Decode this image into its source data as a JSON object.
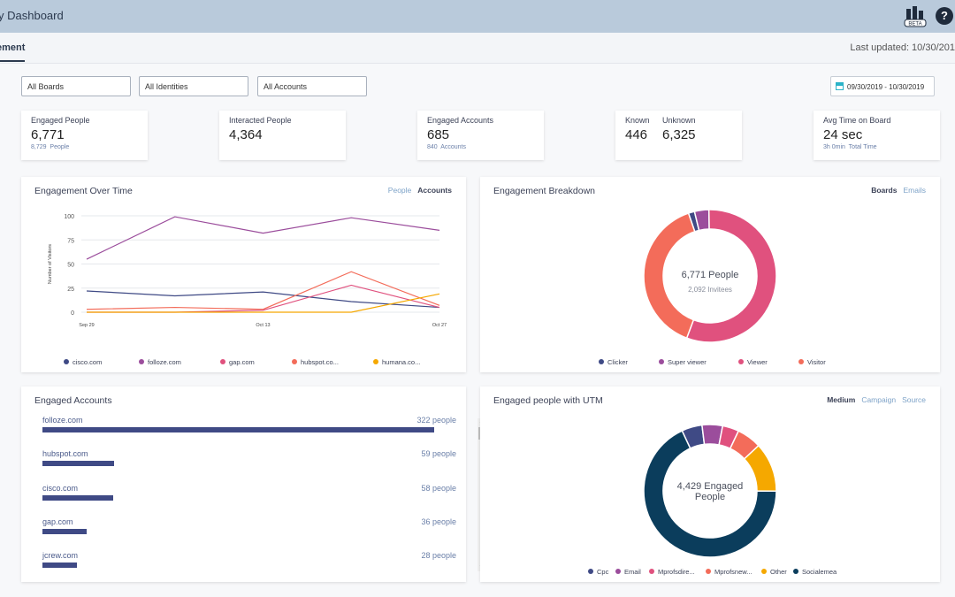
{
  "header": {
    "title": "y Dashboard",
    "beta_label": "BETA",
    "help_label": "?"
  },
  "subnav": {
    "tab_label": "ement",
    "last_updated": "Last updated: 10/30/201"
  },
  "filters": [
    {
      "label": "All Boards"
    },
    {
      "label": "All Identities"
    },
    {
      "label": "All Accounts"
    }
  ],
  "date_range": "09/30/2019 - 10/30/2019",
  "stats": {
    "engaged_people": {
      "label": "Engaged People",
      "value": "6,771",
      "sub_value": "8,729",
      "sub_label": "People"
    },
    "interacted_people": {
      "label": "Interacted People",
      "value": "4,364"
    },
    "engaged_accounts": {
      "label": "Engaged Accounts",
      "value": "685",
      "sub_value": "840",
      "sub_label": "Accounts"
    },
    "known": {
      "label": "Known",
      "value": "446"
    },
    "unknown": {
      "label": "Unknown",
      "value": "6,325"
    },
    "avg_time": {
      "label": "Avg Time on Board",
      "value": "24 sec",
      "sub_value": "3h 0min",
      "sub_label": "Total Time"
    }
  },
  "engagement_over_time": {
    "title": "Engagement Over Time",
    "tabs": [
      "People",
      "Accounts"
    ],
    "active_tab": "Accounts"
  },
  "engagement_breakdown": {
    "title": "Engagement Breakdown",
    "tabs": [
      "Boards",
      "Emails"
    ],
    "active_tab": "Boards",
    "center_value": "6,771 People",
    "center_sub": "2,092 Invitees"
  },
  "engaged_accounts_panel": {
    "title": "Engaged Accounts",
    "rows": [
      {
        "name": "folloze.com",
        "count": "322 people",
        "value": 322
      },
      {
        "name": "hubspot.com",
        "count": "59 people",
        "value": 59
      },
      {
        "name": "cisco.com",
        "count": "58 people",
        "value": 58
      },
      {
        "name": "gap.com",
        "count": "36 people",
        "value": 36
      },
      {
        "name": "jcrew.com",
        "count": "28 people",
        "value": 28
      }
    ]
  },
  "utm_panel": {
    "title": "Engaged people with UTM",
    "tabs": [
      "Medium",
      "Campaign",
      "Source"
    ],
    "active_tab": "Medium",
    "center_value": "4,429 Engaged",
    "center_sub": "People"
  },
  "chart_data": [
    {
      "type": "line",
      "title": "Engagement Over Time",
      "ylabel": "Number of Visitors",
      "xlabel": "",
      "ylim": [
        0,
        100
      ],
      "y_ticks": [
        0,
        25,
        50,
        75,
        100
      ],
      "x_tick_labels": [
        "Sep 29",
        "Oct 13",
        "Oct 27"
      ],
      "x": [
        0,
        1,
        2,
        3,
        4
      ],
      "series": [
        {
          "name": "cisco.com",
          "color": "#3f4a85",
          "values": [
            22,
            17,
            21,
            11,
            5
          ]
        },
        {
          "name": "folloze.com",
          "color": "#9b4d9c",
          "values": [
            55,
            99,
            82,
            98,
            85
          ]
        },
        {
          "name": "gap.com",
          "color": "#e0517e",
          "values": [
            0,
            0,
            2,
            28,
            5
          ]
        },
        {
          "name": "hubspot.co...",
          "color": "#f36c5a",
          "values": [
            3,
            5,
            3,
            42,
            7
          ]
        },
        {
          "name": "humana.co...",
          "color": "#f5a800",
          "values": [
            0,
            0,
            0,
            0,
            19
          ]
        }
      ],
      "legend": "bottom"
    },
    {
      "type": "pie",
      "title": "Engagement Breakdown",
      "categories": [
        "Clicker",
        "Super viewer",
        "Viewer",
        "Visitor"
      ],
      "values": [
        1.5,
        3.5,
        56,
        39
      ],
      "colors": [
        "#3f4a85",
        "#9b4d9c",
        "#e0517e",
        "#f36c5a"
      ],
      "legend": "bottom"
    },
    {
      "type": "bar",
      "title": "Engaged Accounts",
      "categories": [
        "folloze.com",
        "hubspot.com",
        "cisco.com",
        "gap.com",
        "jcrew.com"
      ],
      "values": [
        322,
        59,
        58,
        36,
        28
      ]
    },
    {
      "type": "pie",
      "title": "Engaged people with UTM",
      "categories": [
        "Cpc",
        "Email",
        "Mprofsdire...",
        "Mprofsnew...",
        "Other",
        "Socialemea"
      ],
      "values": [
        5,
        5,
        4,
        6,
        12,
        68
      ],
      "colors": [
        "#3f4a85",
        "#9b4d9c",
        "#e0517e",
        "#f36c5a",
        "#f5a800",
        "#0b3d5c"
      ],
      "legend": "bottom"
    }
  ]
}
